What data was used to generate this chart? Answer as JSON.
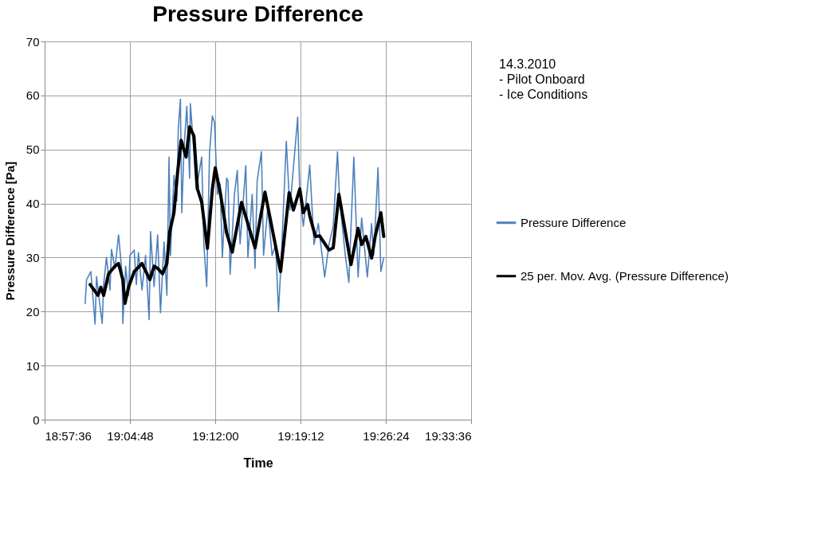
{
  "chart_data": {
    "type": "line",
    "title": "Pressure Difference",
    "xlabel": "Time",
    "ylabel": "Pressure Difference [Pa]",
    "annotations": [
      "14.3.2010",
      " - Pilot Onboard",
      " - Ice Conditions"
    ],
    "xlim": [
      18.96,
      19.56
    ],
    "xticks": [
      {
        "value": 18.96,
        "label": "18:57:36"
      },
      {
        "value": 19.08,
        "label": "19:04:48"
      },
      {
        "value": 19.2,
        "label": "19:12:00"
      },
      {
        "value": 19.32,
        "label": "19:19:12"
      },
      {
        "value": 19.44,
        "label": "19:26:24"
      },
      {
        "value": 19.56,
        "label": "19:33:36"
      }
    ],
    "ylim": [
      0,
      70
    ],
    "yticks": [
      0,
      10,
      20,
      30,
      40,
      50,
      60,
      70
    ],
    "grid": true,
    "legend": "right",
    "marker": "none",
    "series": [
      {
        "name": "Pressure Difference",
        "color": "#4f81bd",
        "x": [
          19.017,
          19.019,
          19.025,
          19.031,
          19.033,
          19.036,
          19.041,
          19.043,
          19.047,
          19.052,
          19.054,
          19.059,
          19.064,
          19.069,
          19.07,
          19.074,
          19.078,
          19.08,
          19.086,
          19.089,
          19.092,
          19.097,
          19.102,
          19.107,
          19.109,
          19.114,
          19.119,
          19.123,
          19.128,
          19.132,
          19.135,
          19.137,
          19.142,
          19.146,
          19.148,
          19.151,
          19.153,
          19.156,
          19.16,
          19.164,
          19.165,
          19.17,
          19.173,
          19.176,
          19.181,
          19.184,
          19.188,
          19.192,
          19.196,
          19.199,
          19.203,
          19.207,
          19.21,
          19.216,
          19.218,
          19.221,
          19.227,
          19.231,
          19.235,
          19.243,
          19.246,
          19.252,
          19.256,
          19.259,
          19.265,
          19.268,
          19.274,
          19.28,
          19.285,
          19.289,
          19.293,
          19.3,
          19.305,
          19.31,
          19.316,
          19.319,
          19.324,
          19.33,
          19.333,
          19.339,
          19.345,
          19.354,
          19.36,
          19.366,
          19.372,
          19.375,
          19.383,
          19.388,
          19.395,
          19.401,
          19.406,
          19.414,
          19.42,
          19.423,
          19.429,
          19.433,
          19.437
        ],
        "values": [
          21.5,
          25.9,
          27.4,
          17.7,
          26.5,
          23,
          17.8,
          25,
          30,
          24,
          31.5,
          28,
          34.2,
          27,
          17.8,
          28.4,
          23,
          30.4,
          31.4,
          25,
          30.9,
          24,
          30.4,
          18.5,
          34.8,
          24.6,
          34.2,
          19.8,
          32.9,
          23,
          48.6,
          30.4,
          45.2,
          40.4,
          53.7,
          59.3,
          38.3,
          50,
          58,
          44.7,
          58.5,
          49.6,
          42.7,
          44.7,
          48.6,
          32.4,
          24.6,
          49.4,
          56.2,
          55,
          41.7,
          43.6,
          30,
          44.7,
          44.2,
          26.9,
          41.7,
          46.1,
          32.5,
          47,
          30,
          41.7,
          28,
          44.2,
          49.6,
          30.4,
          39.3,
          30.4,
          32.4,
          20,
          30,
          51.5,
          38.8,
          46.6,
          56,
          41.7,
          35.8,
          43.2,
          47.1,
          32.4,
          36.3,
          26.4,
          32.4,
          35.8,
          49.6,
          40.7,
          30.4,
          25.4,
          48.6,
          26.4,
          37.3,
          26.4,
          36.3,
          30.4,
          46.6,
          27.4,
          29.9
        ]
      },
      {
        "name": "25 per. Mov. Avg. (Pressure Difference)",
        "color": "#000000",
        "x": [
          19.024,
          19.035,
          19.039,
          19.043,
          19.05,
          19.059,
          19.064,
          19.07,
          19.073,
          19.078,
          19.086,
          19.097,
          19.108,
          19.114,
          19.119,
          19.126,
          19.132,
          19.136,
          19.142,
          19.147,
          19.152,
          19.159,
          19.164,
          19.17,
          19.175,
          19.181,
          19.189,
          19.196,
          19.2,
          19.207,
          19.216,
          19.224,
          19.237,
          19.256,
          19.27,
          19.292,
          19.304,
          19.31,
          19.319,
          19.324,
          19.33,
          19.333,
          19.341,
          19.347,
          19.36,
          19.366,
          19.374,
          19.383,
          19.391,
          19.401,
          19.406,
          19.412,
          19.42,
          19.425,
          19.433,
          19.437
        ],
        "values": [
          25,
          23,
          24.5,
          23,
          27,
          28.4,
          28.9,
          25.9,
          21.5,
          24.5,
          27.4,
          28.9,
          25.9,
          28.4,
          28,
          27,
          28.9,
          34.8,
          38.3,
          45.7,
          51.7,
          48.6,
          54.2,
          52.5,
          42.7,
          40.2,
          31.7,
          42.7,
          46.6,
          42.1,
          34.6,
          31,
          40.2,
          31.8,
          42.1,
          27.4,
          42,
          38.8,
          42.7,
          38.3,
          39.8,
          37.7,
          33.9,
          34,
          31.4,
          31.8,
          41.7,
          34.8,
          28.7,
          35.4,
          32.4,
          33.9,
          29.9,
          33.9,
          38.3,
          33.9
        ]
      }
    ]
  }
}
